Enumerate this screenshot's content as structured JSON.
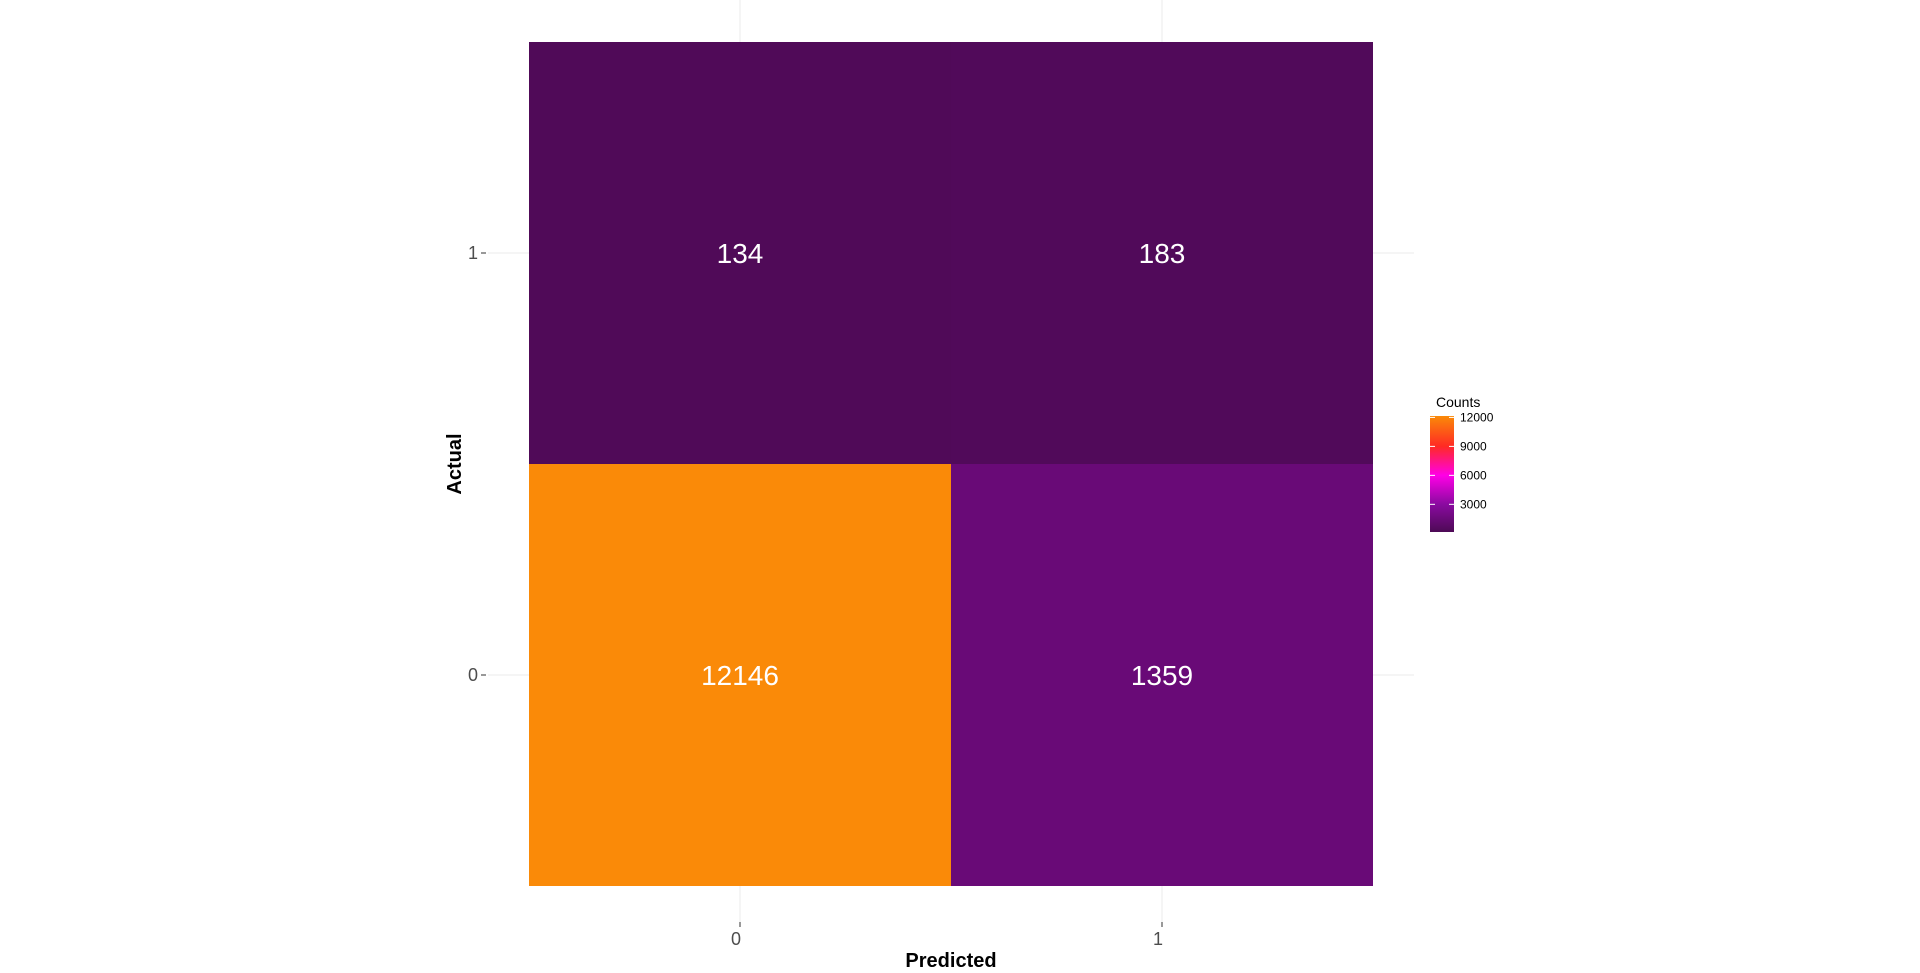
{
  "chart_data": {
    "type": "heatmap",
    "title": "",
    "xlabel": "Predicted",
    "ylabel": "Actual",
    "x_categories": [
      "0",
      "1"
    ],
    "y_categories": [
      "0",
      "1"
    ],
    "cells": [
      {
        "x": "0",
        "y": "1",
        "value": 134
      },
      {
        "x": "1",
        "y": "1",
        "value": 183
      },
      {
        "x": "0",
        "y": "0",
        "value": 12146
      },
      {
        "x": "1",
        "y": "0",
        "value": 1359
      }
    ],
    "legend": {
      "title": "Counts",
      "placement": "right",
      "ticks": [
        3000,
        6000,
        9000,
        12000
      ],
      "range": [
        134,
        12146
      ]
    },
    "color_scale": {
      "stops": [
        {
          "value": 0,
          "color": "#4d0a55"
        },
        {
          "value": 3000,
          "color": "#8a0aa0"
        },
        {
          "value": 6000,
          "color": "#ff00e6"
        },
        {
          "value": 9000,
          "color": "#ff2a24"
        },
        {
          "value": 12146,
          "color": "#fa8a08"
        }
      ]
    },
    "label_color": "#ffffff",
    "grid": true,
    "grid_color": "#ebebeb"
  }
}
